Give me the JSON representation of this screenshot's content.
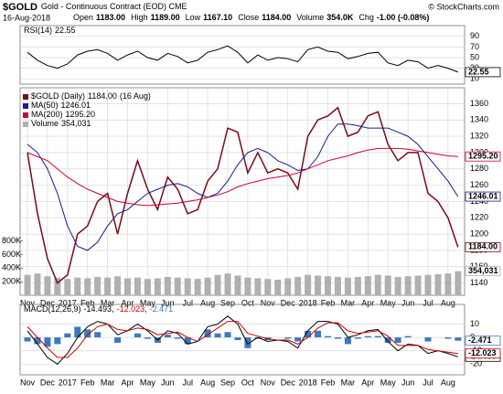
{
  "header": {
    "symbol": "$GOLD",
    "description": "Gold - Continuous Contract (EOD) CME",
    "date": "16-Aug-2018",
    "fields": [
      {
        "label": "Open",
        "value": "1183.00"
      },
      {
        "label": "High",
        "value": "1189.00"
      },
      {
        "label": "Low",
        "value": "1167.10"
      },
      {
        "label": "Close",
        "value": "1184.00"
      },
      {
        "label": "Volume",
        "value": "354.0K"
      },
      {
        "label": "Chg",
        "value": "-1.00 (-0.08%)"
      }
    ],
    "credit": "© StockCharts.com"
  },
  "chart_data": [
    {
      "type": "line",
      "label": "RSI(14)",
      "ylim": [
        0,
        100
      ],
      "yticks": [
        90,
        70,
        50,
        30,
        10
      ],
      "grid": true,
      "series": [
        {
          "color": "#000000",
          "last_label": "22.55",
          "values": [
            60,
            45,
            35,
            30,
            38,
            55,
            62,
            65,
            58,
            45,
            55,
            62,
            50,
            45,
            58,
            52,
            40,
            45,
            60,
            65,
            72,
            60,
            40,
            55,
            45,
            50,
            48,
            42,
            65,
            70,
            62,
            60,
            48,
            52,
            58,
            60,
            40,
            35,
            45,
            42,
            30,
            35,
            30,
            22.55
          ]
        }
      ]
    },
    {
      "type": "line",
      "categories": [
        "Nov",
        null,
        "Dec",
        null,
        "2017",
        null,
        "Feb",
        null,
        "Mar",
        null,
        "Apr",
        null,
        "May",
        null,
        "Jun",
        null,
        "Jul",
        null,
        "Aug",
        null,
        "Sep",
        null,
        "Oct",
        null,
        "Nov",
        null,
        "Dec",
        null,
        "2018",
        null,
        "Feb",
        null,
        "Mar",
        null,
        "Apr",
        null,
        "May",
        null,
        "Jun",
        null,
        "Jul",
        null,
        "Aug",
        null
      ],
      "ylim": [
        1125,
        1375
      ],
      "yticks": [
        1140,
        1160,
        1180,
        1200,
        1220,
        1240,
        1260,
        1280,
        1300,
        1320,
        1340,
        1360
      ],
      "grid": true,
      "y2lim": [
        0,
        3000000
      ],
      "y2ticks": [
        {
          "value": 200000,
          "label": "200K"
        },
        {
          "value": 400000,
          "label": "400K"
        },
        {
          "value": 600000,
          "label": "600K"
        },
        {
          "value": 800000,
          "label": "800K"
        }
      ],
      "series": [
        {
          "name": "$GOLD (Daily)",
          "last_label": "1184.00",
          "date_label": "(16 Aug)",
          "color": "#7a0a1a",
          "values": [
            1300,
            1225,
            1170,
            1140,
            1150,
            1200,
            1210,
            1240,
            1250,
            1200,
            1250,
            1290,
            1255,
            1230,
            1270,
            1255,
            1225,
            1230,
            1265,
            1280,
            1330,
            1325,
            1275,
            1300,
            1275,
            1280,
            1275,
            1255,
            1320,
            1340,
            1345,
            1355,
            1320,
            1325,
            1345,
            1350,
            1310,
            1290,
            1300,
            1300,
            1250,
            1240,
            1220,
            1184
          ]
        },
        {
          "name": "MA(50)",
          "last_label": "1246.01",
          "color": "#1a1a8c",
          "values": [
            1310,
            1300,
            1280,
            1250,
            1210,
            1185,
            1180,
            1190,
            1210,
            1225,
            1230,
            1240,
            1250,
            1255,
            1260,
            1262,
            1258,
            1250,
            1245,
            1250,
            1265,
            1285,
            1300,
            1305,
            1300,
            1290,
            1285,
            1278,
            1280,
            1295,
            1320,
            1335,
            1335,
            1333,
            1330,
            1330,
            1330,
            1325,
            1320,
            1310,
            1295,
            1280,
            1265,
            1246.01
          ]
        },
        {
          "name": "MA(200)",
          "last_label": "1295.20",
          "color": "#cc0033",
          "values": [
            1300,
            1295,
            1290,
            1280,
            1270,
            1262,
            1255,
            1250,
            1245,
            1240,
            1238,
            1236,
            1235,
            1236,
            1237,
            1238,
            1240,
            1242,
            1245,
            1248,
            1252,
            1258,
            1262,
            1265,
            1268,
            1270,
            1272,
            1275,
            1280,
            1285,
            1290,
            1293,
            1296,
            1300,
            1303,
            1305,
            1305,
            1305,
            1304,
            1302,
            1300,
            1298,
            1296,
            1295.2
          ]
        },
        {
          "name": "Volume",
          "last_label": "354,031",
          "color": "#b0b0b0",
          "axis": "y2",
          "type": "bar",
          "values": [
            300000,
            320000,
            280000,
            260000,
            240000,
            260000,
            250000,
            270000,
            260000,
            280000,
            250000,
            260000,
            240000,
            250000,
            270000,
            260000,
            250000,
            240000,
            260000,
            300000,
            320000,
            290000,
            260000,
            250000,
            240000,
            230000,
            250000,
            270000,
            300000,
            290000,
            280000,
            270000,
            260000,
            270000,
            280000,
            300000,
            290000,
            270000,
            280000,
            290000,
            300000,
            310000,
            320000,
            354031
          ]
        }
      ]
    },
    {
      "type": "line",
      "label": "MACD(12,26,9)",
      "categories": [
        "Nov",
        null,
        "Dec",
        null,
        "2017",
        null,
        "Feb",
        null,
        "Mar",
        null,
        "Apr",
        null,
        "May",
        null,
        "Jun",
        null,
        "Jul",
        null,
        "Aug",
        null,
        "Sep",
        null,
        "Oct",
        null,
        "Nov",
        null,
        "Dec",
        null,
        "2018",
        null,
        "Feb",
        null,
        "Mar",
        null,
        "Apr",
        null,
        "May",
        null,
        "Jun",
        null,
        "Jul",
        null,
        "Aug",
        null
      ],
      "ylim": [
        -28,
        22
      ],
      "yticks": [
        10,
        0,
        -10,
        -20
      ],
      "grid": true,
      "series": [
        {
          "color": "#000000",
          "last_label": "-14.493",
          "values": [
            5,
            -5,
            -15,
            -20,
            -12,
            0,
            8,
            12,
            10,
            2,
            5,
            10,
            5,
            -2,
            5,
            3,
            -5,
            -3,
            8,
            10,
            16,
            10,
            -5,
            0,
            -3,
            -2,
            -3,
            -8,
            5,
            12,
            12,
            10,
            0,
            2,
            5,
            6,
            -3,
            -10,
            -5,
            -6,
            -12,
            -10,
            -12,
            -14.493
          ]
        },
        {
          "color": "#cc0000",
          "last_label": "-12.023",
          "values": [
            8,
            0,
            -8,
            -15,
            -15,
            -8,
            2,
            8,
            10,
            6,
            5,
            7,
            6,
            2,
            3,
            4,
            0,
            -3,
            2,
            7,
            12,
            12,
            3,
            1,
            -1,
            -2,
            -2,
            -5,
            0,
            7,
            11,
            11,
            5,
            3,
            4,
            5,
            1,
            -6,
            -6,
            -6,
            -9,
            -10,
            -11,
            -12.023
          ]
        },
        {
          "color": "#3b78c0",
          "last_label": "-2.471",
          "type": "bar",
          "values": [
            -3,
            -5,
            -7,
            -5,
            3,
            8,
            6,
            4,
            0,
            -4,
            0,
            3,
            -1,
            -4,
            2,
            -1,
            -5,
            0,
            6,
            3,
            4,
            -2,
            -8,
            -1,
            -2,
            0,
            -1,
            -3,
            5,
            5,
            1,
            -1,
            -5,
            -1,
            1,
            1,
            -4,
            -4,
            1,
            0,
            -3,
            0,
            -1,
            -2.471
          ]
        }
      ]
    }
  ]
}
